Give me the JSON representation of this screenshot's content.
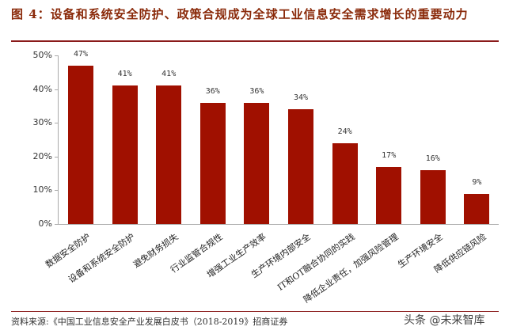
{
  "title": "图 4：设备和系统安全防护、政策合规成为全球工业信息安全需求增长的重要动力",
  "source": "资料来源:《中国工业信息安全产业发展白皮书（2018-2019》招商证券",
  "watermark": "头条 @未来智库",
  "chart_data": {
    "type": "bar",
    "title": "设备和系统安全防护、政策合规成为全球工业信息安全需求增长的重要动力",
    "xlabel": "",
    "ylabel": "",
    "ylim": [
      0,
      50
    ],
    "yticks": [
      "0%",
      "10%",
      "20%",
      "30%",
      "40%",
      "50%"
    ],
    "grid": false,
    "legend": null,
    "categories": [
      "数据安全防护",
      "设备和系统安全防护",
      "避免财务损失",
      "行业监管合规性",
      "增强工业生产效率",
      "生产环境内部安全",
      "IT和OT融合协同的实践",
      "降低企业责任，加强风险管理",
      "生产环境安全",
      "降低供应链风险"
    ],
    "values": [
      47,
      41,
      41,
      36,
      36,
      34,
      24,
      17,
      16,
      9
    ],
    "value_labels": [
      "47%",
      "41%",
      "41%",
      "36%",
      "36%",
      "34%",
      "24%",
      "17%",
      "16%",
      "9%"
    ],
    "bar_color": "#a01000"
  }
}
